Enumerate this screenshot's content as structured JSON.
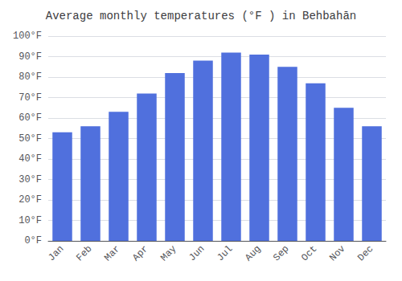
{
  "chart_data": {
    "type": "bar",
    "title": "Average monthly temperatures (°F ) in Behbahān",
    "categories": [
      "Jan",
      "Feb",
      "Mar",
      "Apr",
      "May",
      "Jun",
      "Jul",
      "Aug",
      "Sep",
      "Oct",
      "Nov",
      "Dec"
    ],
    "values": [
      53,
      56,
      63,
      72,
      82,
      88,
      92,
      91,
      85,
      77,
      65,
      56
    ],
    "ylim": [
      0,
      100
    ],
    "yticks": [
      {
        "value": 0,
        "label": "0°F"
      },
      {
        "value": 10,
        "label": "10°F"
      },
      {
        "value": 20,
        "label": "20°F"
      },
      {
        "value": 30,
        "label": "30°F"
      },
      {
        "value": 40,
        "label": "40°F"
      },
      {
        "value": 50,
        "label": "50°F"
      },
      {
        "value": 60,
        "label": "60°F"
      },
      {
        "value": 70,
        "label": "70°F"
      },
      {
        "value": 80,
        "label": "80°F"
      },
      {
        "value": 90,
        "label": "90°F"
      },
      {
        "value": 100,
        "label": "100°F"
      }
    ],
    "grid": true
  }
}
